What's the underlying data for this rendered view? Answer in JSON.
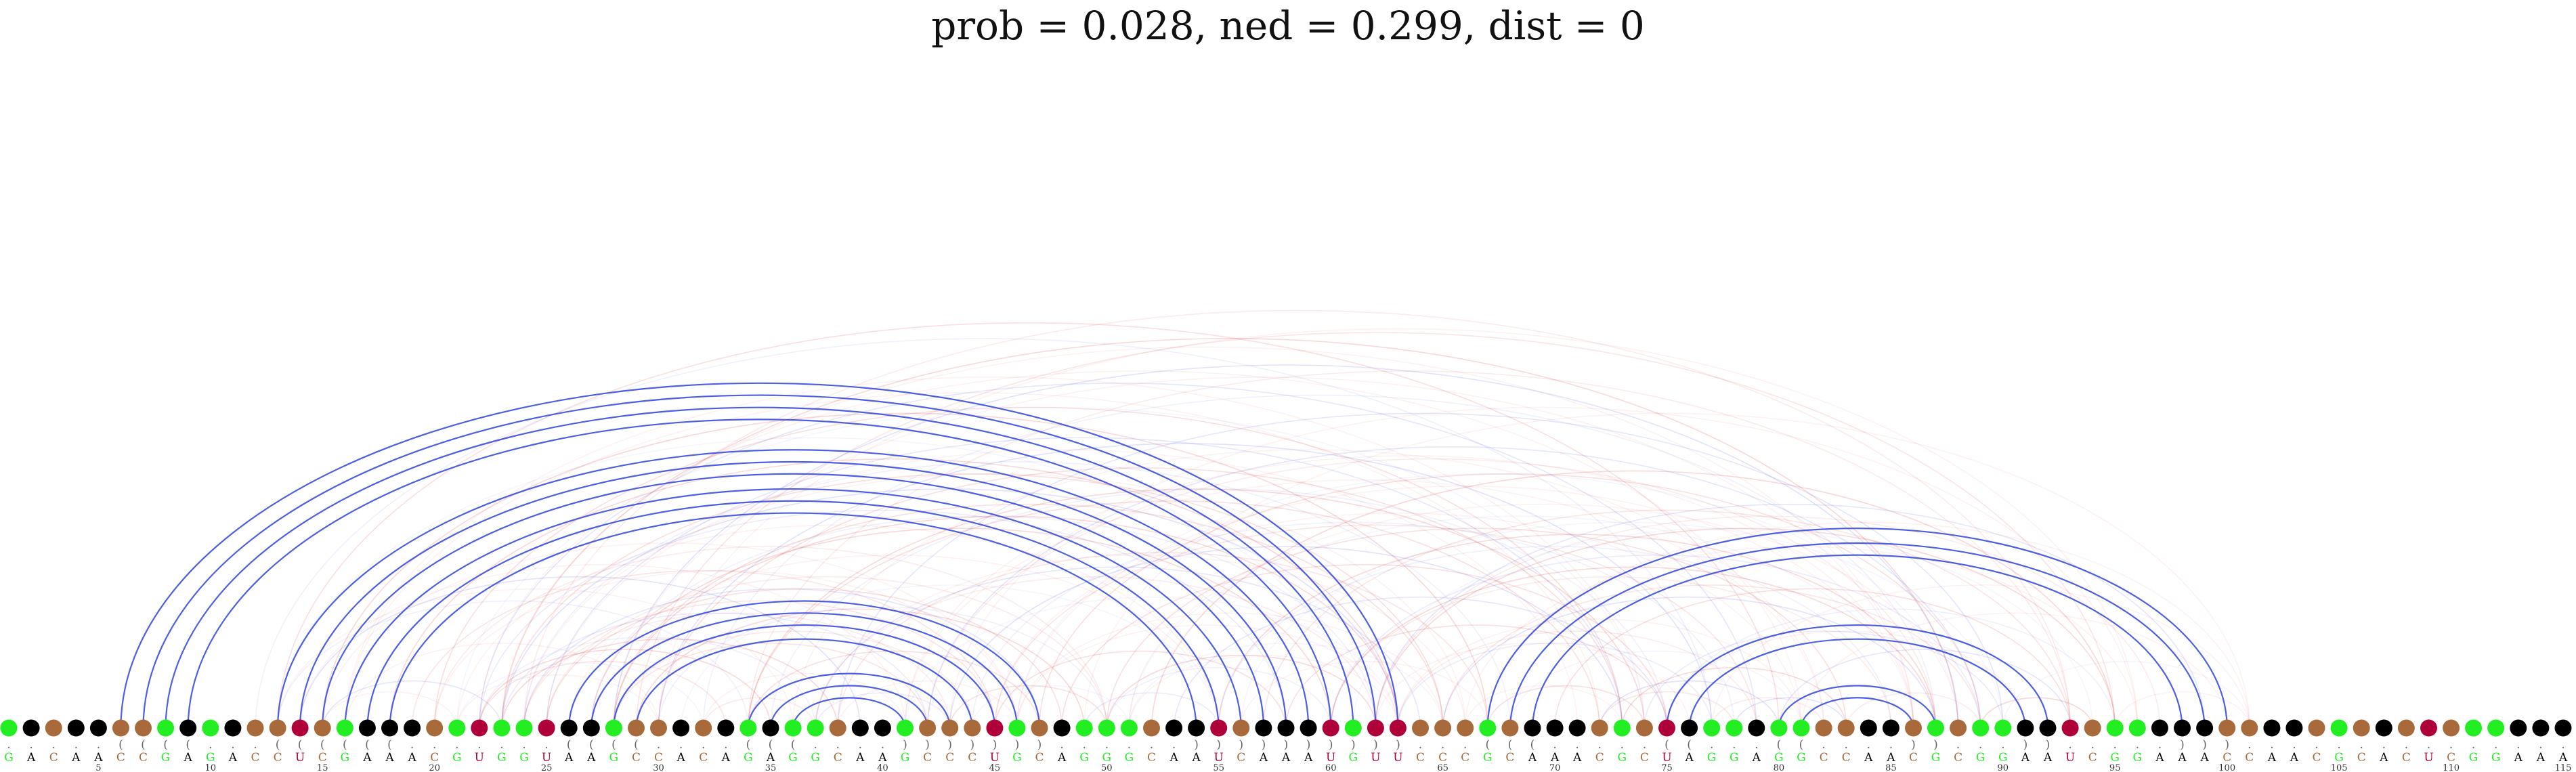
{
  "title": "prob = 0.028, ned = 0.299, dist = 0",
  "sequence": "GACAACCGAGACCUCGAAACGUGGUAAGCCACAGAGGCAAGCCCUGCAGGGCAAUCAAAUGUUCCCGCAAACGCUAGGAGGCCAACGCGGAAUCGGAAACCAACGCACUCGGAAA",
  "structure": ".....((((...((((((.......((((....(((....)))))))......))))))))))...(((.....((...((....))...)).....)))...............",
  "tick_labels": [
    "5",
    "10",
    "15",
    "20",
    "25",
    "30",
    "35",
    "40",
    "45",
    "50",
    "55",
    "60",
    "65",
    "70",
    "75",
    "80",
    "85",
    "90",
    "95",
    "100",
    "105",
    "110",
    "115"
  ],
  "colors": {
    "G": "#22ee22",
    "A": "#000000",
    "C": "#a86a3a",
    "U": "#b0003a",
    "pair_arc": "#3a4ee0",
    "prob_arc_red": "#e05050",
    "prob_arc_blue": "#7a7ae8"
  }
}
